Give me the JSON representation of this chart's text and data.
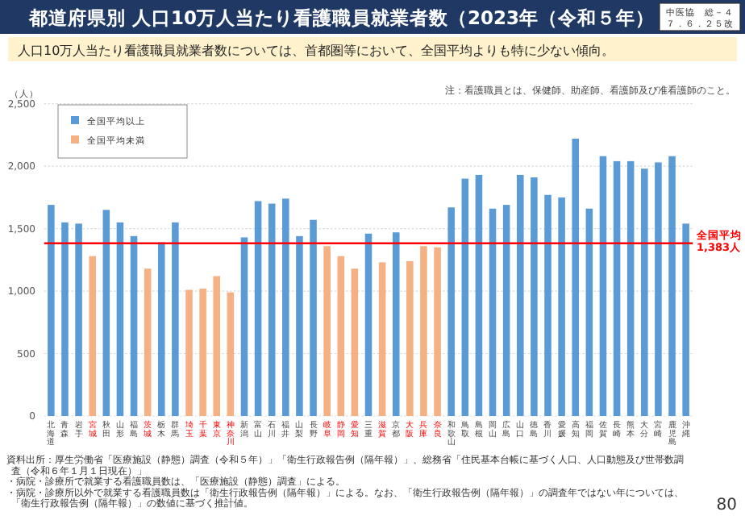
{
  "chart_data": {
    "type": "bar",
    "title": "都道府県別 人口10万人当たり看護職員就業者数（2023年（令和５年）",
    "subtitle": "人口10万人当たり看護職員就業者数については、首都圏等において、全国平均よりも特に少ない傾向。",
    "ylabel": "（人）",
    "categories": [
      "北海道",
      "青森",
      "岩手",
      "宮城",
      "秋田",
      "山形",
      "福島",
      "茨城",
      "栃木",
      "群馬",
      "埼玉",
      "千葉",
      "東京",
      "神奈川",
      "新潟",
      "富山",
      "石川",
      "福井",
      "山梨",
      "長野",
      "岐阜",
      "静岡",
      "愛知",
      "三重",
      "滋賀",
      "京都",
      "大阪",
      "兵庫",
      "奈良",
      "和歌山",
      "鳥取",
      "島根",
      "岡山",
      "広島",
      "山口",
      "徳島",
      "香川",
      "愛媛",
      "高知",
      "福岡",
      "佐賀",
      "長崎",
      "熊本",
      "大分",
      "宮崎",
      "鹿児島",
      "沖縄"
    ],
    "series": [
      {
        "name": "全国平均以上",
        "color": "#5b9bd5",
        "values": [
          1690,
          1550,
          1540,
          null,
          1650,
          1550,
          1440,
          null,
          1390,
          1550,
          null,
          null,
          null,
          null,
          1430,
          1720,
          1700,
          1740,
          1440,
          1570,
          null,
          null,
          null,
          1460,
          null,
          1470,
          null,
          null,
          null,
          1670,
          1900,
          1930,
          1660,
          1690,
          1930,
          1910,
          1770,
          1750,
          2220,
          1660,
          2080,
          2040,
          2040,
          1980,
          2030,
          2080,
          1540
        ]
      },
      {
        "name": "全国平均未満",
        "color": "#f4b183",
        "values": [
          null,
          null,
          null,
          1280,
          null,
          null,
          null,
          1180,
          null,
          null,
          1010,
          1020,
          1120,
          990,
          null,
          null,
          null,
          null,
          null,
          null,
          1360,
          1280,
          1180,
          null,
          1230,
          null,
          1240,
          1360,
          1350,
          null,
          null,
          null,
          null,
          null,
          null,
          null,
          null,
          null,
          null,
          null,
          null,
          null,
          null,
          null,
          null,
          null,
          null
        ]
      }
    ],
    "ylim": [
      0,
      2500
    ],
    "yticks": [
      0,
      500,
      {
        "value": 1000,
        "label": "1,000"
      },
      {
        "value": 1500,
        "label": "1,500"
      },
      {
        "value": 2000,
        "label": "2,000"
      },
      {
        "value": 2500,
        "label": "2,500"
      }
    ],
    "grid": "y",
    "legend": "top left",
    "ref_lines": [
      {
        "axis": "y",
        "value": 1383,
        "label": "全国平均\n1,383人",
        "color": "#ff0000"
      }
    ],
    "annotations": [
      "中医協　総－４",
      "７．６．２５改",
      "注：看護職員とは、保健師、助産師、看護師及び准看護師のこと。",
      "資料出所：厚生労働省「医療施設（静態）調査（令和５年）」「衛生行政報告例（隔年報）」、総務省「住民基本台帳に基づく人口、人口動態及び世帯数調査（令和６年１月１日現在）」",
      "・病院・診療所で就業する看護職員数は、「医療施設（静態）調査」による。",
      "・病院・診療所以外で就業する看護職員数は「衛生行政報告例（隔年報）」による。なお、「衛生行政報告例（隔年報）」の調査年ではない年については、「衛生行政報告例（隔年報）」の数値に基づく推計値。",
      "80"
    ]
  }
}
